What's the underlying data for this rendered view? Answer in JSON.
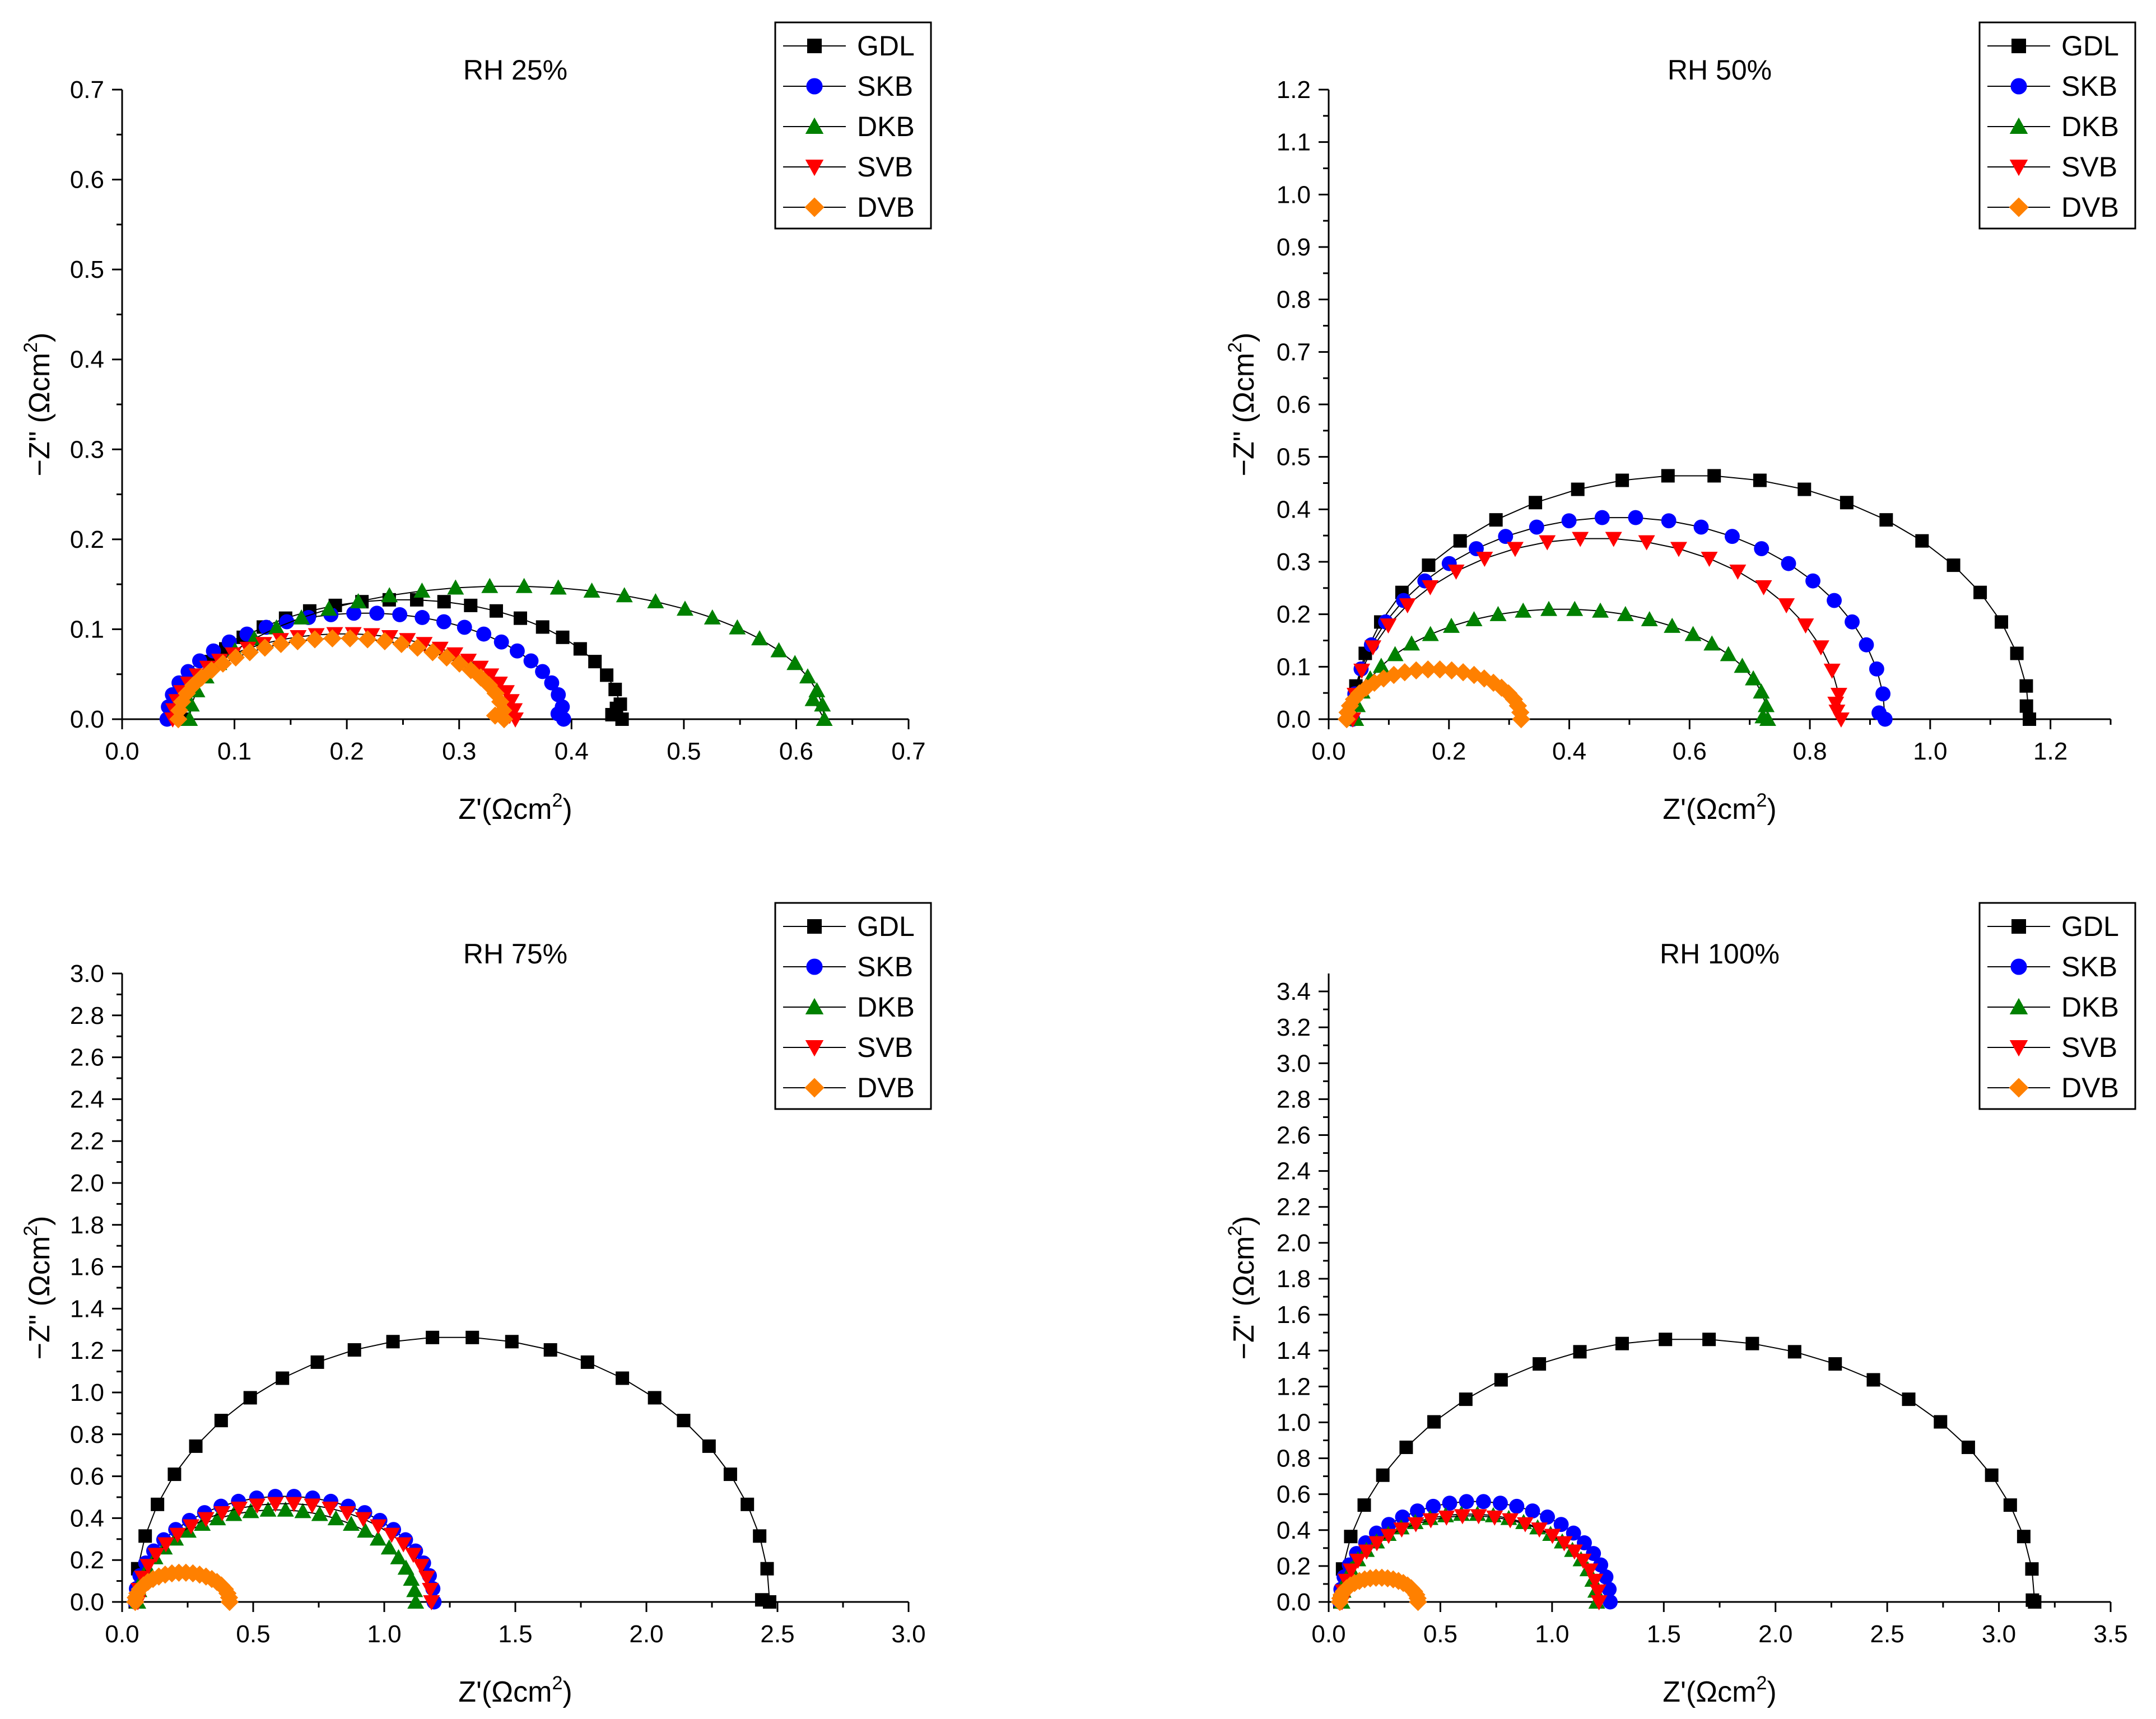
{
  "axis_label_x": "Z'(Ωcm",
  "axis_label_y": "−Z\" (Ωcm",
  "axis_label_sup": "2",
  "legend_order": [
    "GDL",
    "SKB",
    "DKB",
    "SVB",
    "DVB"
  ],
  "series_styles": {
    "GDL": {
      "color": "#000000",
      "marker": "square"
    },
    "SKB": {
      "color": "#0000ff",
      "marker": "circle"
    },
    "DKB": {
      "color": "#008000",
      "marker": "triangle-up"
    },
    "SVB": {
      "color": "#ff0000",
      "marker": "triangle-down"
    },
    "DVB": {
      "color": "#ff8000",
      "marker": "diamond"
    }
  },
  "chart_data": [
    {
      "type": "scatter",
      "title": "RH 25%",
      "xlim": [
        0,
        0.7
      ],
      "ylim": [
        0,
        0.7
      ],
      "xticks": [
        0.0,
        0.1,
        0.2,
        0.3,
        0.4,
        0.5,
        0.6,
        0.7
      ],
      "yticks": [
        0.0,
        0.1,
        0.2,
        0.3,
        0.4,
        0.5,
        0.6,
        0.7
      ],
      "tick_decimals": 1,
      "legend": "top-right",
      "series": [
        {
          "name": "GDL",
          "r0": 0.055,
          "r1": 0.445,
          "peak": 0.133,
          "n": 26,
          "tail": [
            [
              0.44,
              0.012
            ],
            [
              0.436,
              0.005
            ]
          ]
        },
        {
          "name": "SKB",
          "r0": 0.04,
          "r1": 0.393,
          "peak": 0.118,
          "n": 28,
          "tail": [
            [
              0.388,
              0.006
            ]
          ]
        },
        {
          "name": "DKB",
          "r0": 0.06,
          "r1": 0.625,
          "peak": 0.148,
          "n": 30,
          "tail": [
            [
              0.615,
              0.022
            ]
          ]
        },
        {
          "name": "SVB",
          "r0": 0.045,
          "r1": 0.35,
          "peak": 0.095,
          "n": 30,
          "tail": [
            [
              0.345,
              0.004
            ]
          ]
        },
        {
          "name": "DVB",
          "r0": 0.05,
          "r1": 0.34,
          "peak": 0.09,
          "n": 30,
          "tail": [
            [
              0.332,
              0.004
            ]
          ]
        }
      ]
    },
    {
      "type": "scatter",
      "title": "RH 50%",
      "xlim": [
        0,
        1.3
      ],
      "ylim": [
        0,
        1.2
      ],
      "xticks": [
        0.0,
        0.2,
        0.4,
        0.6,
        0.8,
        1.0,
        1.2
      ],
      "yticks": [
        0.0,
        0.1,
        0.2,
        0.3,
        0.4,
        0.5,
        0.6,
        0.7,
        0.8,
        0.9,
        1.0,
        1.1,
        1.2
      ],
      "tick_decimals": 1,
      "legend": "top-right",
      "series": [
        {
          "name": "GDL",
          "r0": 0.04,
          "r1": 1.165,
          "peak": 0.465,
          "n": 24,
          "tail": [
            [
              1.16,
              0.025
            ]
          ]
        },
        {
          "name": "SKB",
          "r0": 0.04,
          "r1": 0.925,
          "peak": 0.385,
          "n": 26,
          "tail": [
            [
              0.915,
              0.012
            ]
          ]
        },
        {
          "name": "DKB",
          "r0": 0.045,
          "r1": 0.73,
          "peak": 0.21,
          "n": 26,
          "tail": [
            [
              0.722,
              0.005
            ]
          ]
        },
        {
          "name": "SVB",
          "r0": 0.04,
          "r1": 0.852,
          "peak": 0.345,
          "n": 24,
          "tail": [
            [
              0.845,
              0.015
            ],
            [
              0.843,
              0.03
            ]
          ]
        },
        {
          "name": "DVB",
          "r0": 0.03,
          "r1": 0.32,
          "peak": 0.095,
          "n": 24,
          "tail": []
        }
      ]
    },
    {
      "type": "scatter",
      "title": "RH 75%",
      "xlim": [
        0,
        3.0
      ],
      "ylim": [
        0,
        3.0
      ],
      "xticks": [
        0.0,
        0.5,
        1.0,
        1.5,
        2.0,
        2.5,
        3.0
      ],
      "yticks": [
        0.0,
        0.2,
        0.4,
        0.6,
        0.8,
        1.0,
        1.2,
        1.4,
        1.6,
        1.8,
        2.0,
        2.2,
        2.4,
        2.6,
        2.8,
        3.0
      ],
      "tick_decimals": 1,
      "legend": "top-right",
      "series": [
        {
          "name": "GDL",
          "r0": 0.05,
          "r1": 2.47,
          "peak": 1.265,
          "n": 26,
          "tail": [
            [
              2.44,
              0.01
            ]
          ]
        },
        {
          "name": "SKB",
          "r0": 0.05,
          "r1": 1.19,
          "peak": 0.505,
          "n": 26,
          "tail": []
        },
        {
          "name": "DKB",
          "r0": 0.06,
          "r1": 1.12,
          "peak": 0.44,
          "n": 26,
          "tail": []
        },
        {
          "name": "SVB",
          "r0": 0.06,
          "r1": 1.18,
          "peak": 0.47,
          "n": 26,
          "tail": []
        },
        {
          "name": "DVB",
          "r0": 0.05,
          "r1": 0.41,
          "peak": 0.14,
          "n": 22,
          "tail": []
        }
      ]
    },
    {
      "type": "scatter",
      "title": "RH 100%",
      "xlim": [
        0,
        3.5
      ],
      "ylim": [
        0,
        3.5
      ],
      "xticks": [
        0.0,
        0.5,
        1.0,
        1.5,
        2.0,
        2.5,
        3.0,
        3.5
      ],
      "yticks": [
        0.0,
        0.2,
        0.4,
        0.6,
        0.8,
        1.0,
        1.2,
        1.4,
        1.6,
        1.8,
        2.0,
        2.2,
        2.4,
        2.6,
        2.8,
        3.0,
        3.2,
        3.4
      ],
      "tick_decimals": 1,
      "legend": "top-right",
      "series": [
        {
          "name": "GDL",
          "r0": 0.05,
          "r1": 3.16,
          "peak": 1.465,
          "n": 26,
          "tail": [
            [
              3.15,
              0.01
            ]
          ]
        },
        {
          "name": "SKB",
          "r0": 0.05,
          "r1": 1.26,
          "peak": 0.56,
          "n": 26,
          "tail": []
        },
        {
          "name": "DKB",
          "r0": 0.06,
          "r1": 1.2,
          "peak": 0.49,
          "n": 26,
          "tail": []
        },
        {
          "name": "SVB",
          "r0": 0.06,
          "r1": 1.21,
          "peak": 0.48,
          "n": 26,
          "tail": []
        },
        {
          "name": "DVB",
          "r0": 0.05,
          "r1": 0.4,
          "peak": 0.135,
          "n": 22,
          "tail": []
        }
      ]
    }
  ]
}
